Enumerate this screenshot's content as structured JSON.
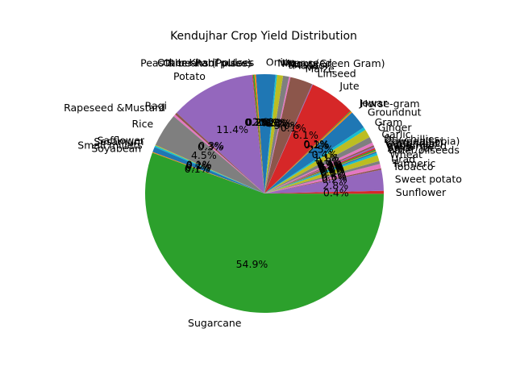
{
  "chart_data": {
    "type": "pie",
    "title": "Kendujhar Crop Yield Distribution",
    "start_angle_deg": 160,
    "counterclock": true,
    "slices": [
      {
        "label": "Sugarcane",
        "value": 54.9,
        "pct_label": "54.9%",
        "color": "#2ca02c"
      },
      {
        "label": "Sunflower",
        "value": 0.4,
        "pct_label": "0.4%",
        "color": "#d62728"
      },
      {
        "label": "Sweet potato",
        "value": 2.8,
        "pct_label": "2.8%",
        "color": "#9467bd"
      },
      {
        "label": "Tobacco",
        "value": 0.2,
        "pct_label": "0.2%",
        "color": "#8c564b"
      },
      {
        "label": "Turmeric",
        "value": 0.6,
        "pct_label": "0.6%",
        "color": "#e377c2"
      },
      {
        "label": "Urad",
        "value": 0.4,
        "pct_label": "0.4%",
        "color": "#7f7f7f"
      },
      {
        "label": "Wheat",
        "value": 0.8,
        "pct_label": "0.8%",
        "color": "#bcbd22"
      },
      {
        "label": "other oilseeds",
        "value": 0.3,
        "pct_label": "0.3%",
        "color": "#17becf"
      },
      {
        "label": "Arhar/Tur",
        "value": 0.2,
        "pct_label": "0.2%",
        "color": "#1f77b4"
      },
      {
        "label": "Bajra",
        "value": 0.1,
        "pct_label": "0.1%",
        "color": "#ff7f0e"
      },
      {
        "label": "Castor seed",
        "value": 0.2,
        "pct_label": "0.2%",
        "color": "#2ca02c"
      },
      {
        "label": "Coriander",
        "value": 0.2,
        "pct_label": "0.2%",
        "color": "#d62728"
      },
      {
        "label": "Cotton(lint)",
        "value": 0.2,
        "pct_label": "0.2%",
        "color": "#9467bd"
      },
      {
        "label": "Cowpea(Lobia)",
        "value": 0.2,
        "pct_label": "0.2%",
        "color": "#8c564b"
      },
      {
        "label": "Dry chillies",
        "value": 0.4,
        "pct_label": "0.4%",
        "color": "#e377c2"
      },
      {
        "label": "Garlic",
        "value": 0.8,
        "pct_label": "0.8%",
        "color": "#7f7f7f"
      },
      {
        "label": "Ginger",
        "value": 1.1,
        "pct_label": "1.1%",
        "color": "#bcbd22"
      },
      {
        "label": "Gram",
        "value": 0.4,
        "pct_label": "0.4%",
        "color": "#17becf"
      },
      {
        "label": "Groundnut",
        "value": 2.5,
        "pct_label": "2.5%",
        "color": "#1f77b4"
      },
      {
        "label": "Horse-gram",
        "value": 0.2,
        "pct_label": "0.2%",
        "color": "#ff7f0e"
      },
      {
        "label": "Jowar",
        "value": 0.1,
        "pct_label": "0.1%",
        "color": "#2ca02c"
      },
      {
        "label": "Jute",
        "value": 6.1,
        "pct_label": "6.1%",
        "color": "#d62728"
      },
      {
        "label": "Linseed",
        "value": 0.1,
        "pct_label": "0.1%",
        "color": "#9467bd"
      },
      {
        "label": "Maize",
        "value": 3.0,
        "pct_label": "3.0%",
        "color": "#8c564b"
      },
      {
        "label": "Masoor",
        "value": 0.2,
        "pct_label": "0.2%",
        "color": "#e377c2"
      },
      {
        "label": "Mesta",
        "value": 0.8,
        "pct_label": "0.8%",
        "color": "#7f7f7f"
      },
      {
        "label": "Moong(Green Gram)",
        "value": 0.8,
        "pct_label": "0.8%",
        "color": "#bcbd22"
      },
      {
        "label": "Niger seed",
        "value": 0.2,
        "pct_label": "0.2%",
        "color": "#17becf"
      },
      {
        "label": "Onion",
        "value": 2.6,
        "pct_label": "2.6%",
        "color": "#1f77b4"
      },
      {
        "label": "Other Kharif pulses",
        "value": 0.2,
        "pct_label": "0.2%",
        "color": "#ff7f0e"
      },
      {
        "label": "Other Rabi pulses",
        "value": 0.2,
        "pct_label": "0.2%",
        "color": "#2ca02c"
      },
      {
        "label": "Peas & beans (Pulses)",
        "value": 0.1,
        "pct_label": "0.1%",
        "color": "#d62728"
      },
      {
        "label": "Potato",
        "value": 11.4,
        "pct_label": "11.4%",
        "color": "#9467bd"
      },
      {
        "label": "Ragi",
        "value": 0.3,
        "pct_label": "0.3%",
        "color": "#8c564b"
      },
      {
        "label": "Rapeseed &Mustard",
        "value": 0.3,
        "pct_label": "0.3%",
        "color": "#e377c2"
      },
      {
        "label": "Rice",
        "value": 4.5,
        "pct_label": "4.5%",
        "color": "#7f7f7f"
      },
      {
        "label": "Safflower",
        "value": 0.1,
        "pct_label": "0.1%",
        "color": "#bcbd22"
      },
      {
        "label": "Sesamum",
        "value": 0.2,
        "pct_label": "0.2%",
        "color": "#17becf"
      },
      {
        "label": "Small millets",
        "value": 0.7,
        "pct_label": "0.7%",
        "color": "#1f77b4"
      },
      {
        "label": "Soyabean",
        "value": 0.1,
        "pct_label": "0.1%",
        "color": "#ff7f0e"
      }
    ]
  }
}
